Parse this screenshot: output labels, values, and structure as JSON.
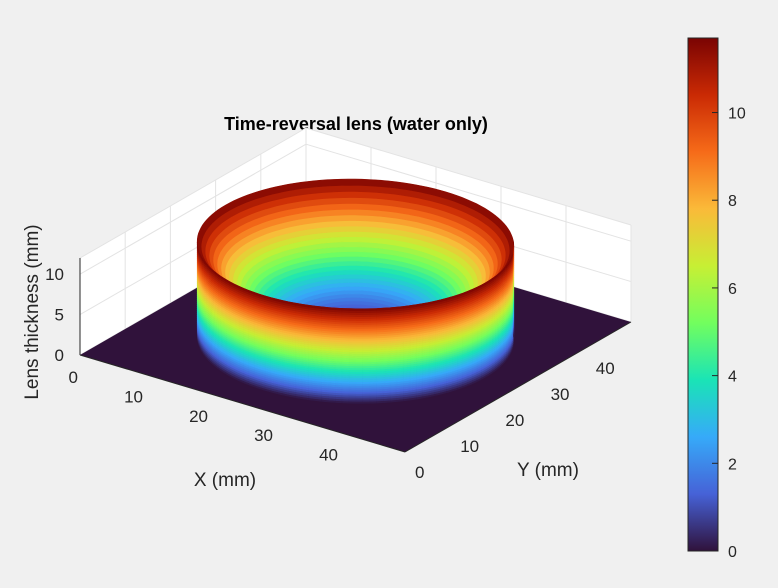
{
  "chart_data": {
    "type": "surface",
    "title": "Time-reversal lens (water only)",
    "xlabel": "X (mm)",
    "ylabel": "Y (mm)",
    "zlabel": "Lens thickness (mm)",
    "xlim": [
      0,
      50
    ],
    "ylim": [
      0,
      50
    ],
    "zlim": [
      0,
      12
    ],
    "x_ticks": [
      0,
      10,
      20,
      30,
      40
    ],
    "y_ticks": [
      0,
      10,
      20,
      30,
      40
    ],
    "z_ticks": [
      0,
      5,
      10
    ],
    "grid": true,
    "colormap": "turbo",
    "surface": {
      "shape": "circular bowl",
      "center_x": 25,
      "center_y": 25,
      "aperture_radius": 20,
      "center_thickness": 0,
      "rim_thickness": 11.7,
      "thickness_outside_aperture": 0
    },
    "colorbar": {
      "limits": [
        0,
        11.7
      ],
      "ticks": [
        0,
        2,
        4,
        6,
        8,
        10
      ],
      "colors": [
        "#30123b",
        "#4662d7",
        "#36aaf9",
        "#1ae4b6",
        "#72fe5e",
        "#c7ef34",
        "#faba39",
        "#f66b19",
        "#ca2a04",
        "#7a0403"
      ]
    }
  }
}
